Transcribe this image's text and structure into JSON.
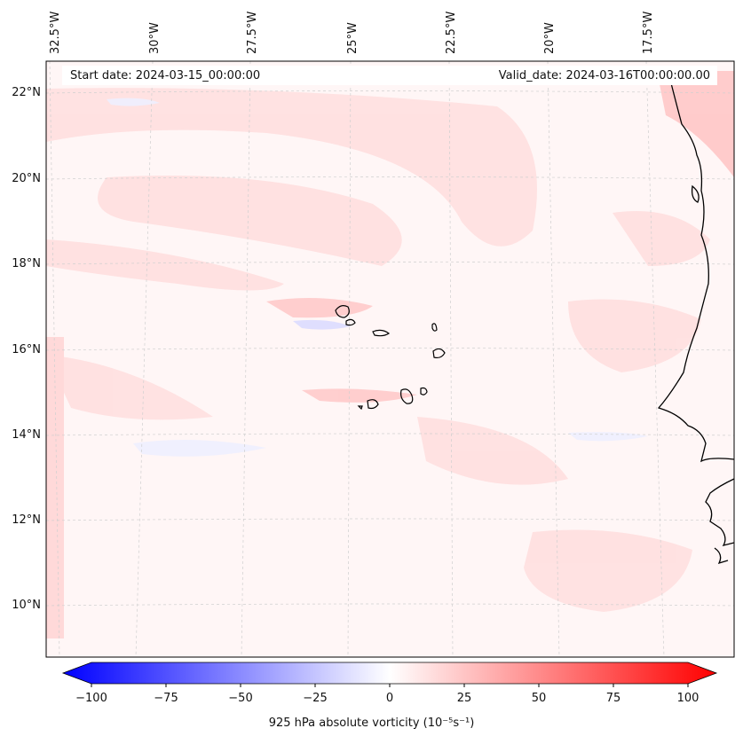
{
  "map": {
    "header_left": "Start date: 2024-03-15_00:00:00",
    "header_right": "Valid_date: 2024-03-16T00:00:00.00",
    "lon_labels": [
      "32.5°W",
      "30°W",
      "27.5°W",
      "25°W",
      "22.5°W",
      "20°W",
      "17.5°W"
    ],
    "lat_labels": [
      "22°N",
      "20°N",
      "18°N",
      "16°N",
      "14°N",
      "12°N",
      "10°N"
    ],
    "colorbar": {
      "title": "925 hPa absolute vorticity (10⁻⁵s⁻¹)",
      "ticks": [
        "−100",
        "−75",
        "−50",
        "−25",
        "0",
        "25",
        "50",
        "75",
        "100"
      ],
      "min": -100,
      "max": 100,
      "colormap": "bwr"
    },
    "colors": {
      "negative": "#0000ff",
      "neutral": "#ffffff",
      "positive": "#ff0000",
      "coast": "#000000"
    }
  }
}
